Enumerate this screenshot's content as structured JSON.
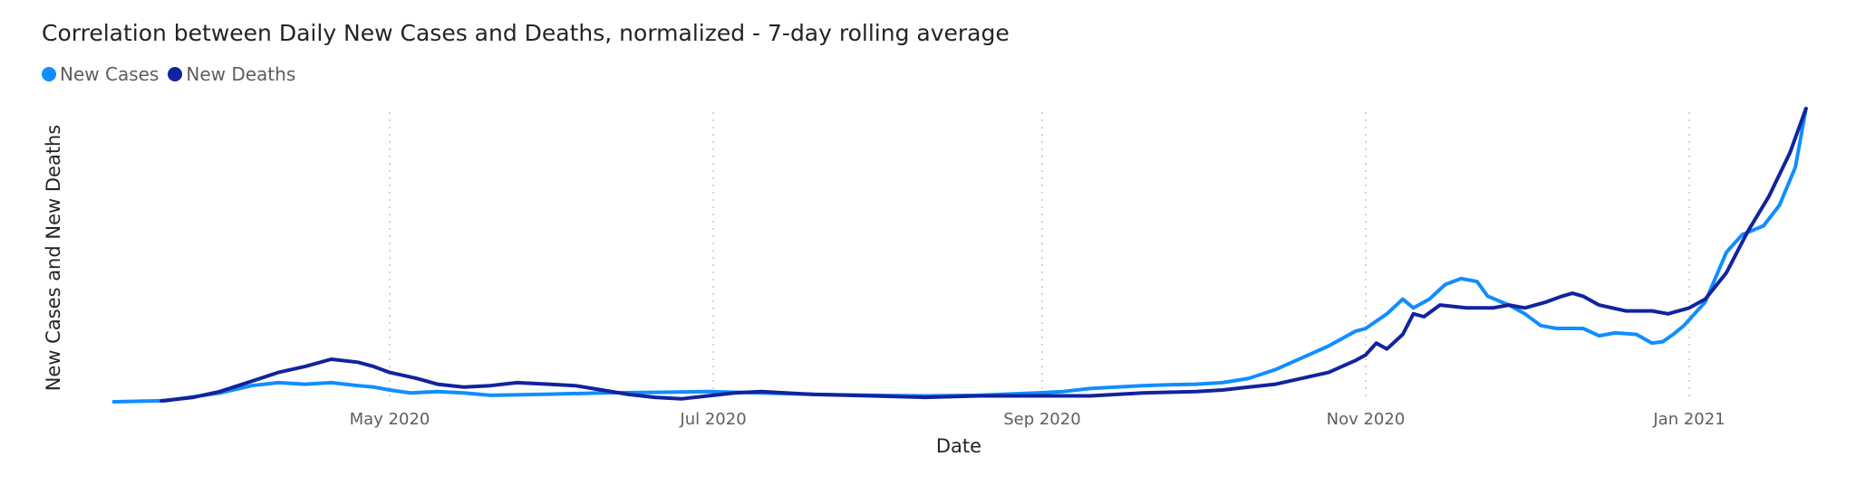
{
  "chart_data": {
    "type": "line",
    "title": "Correlation between Daily New Cases and Deaths, normalized - 7-day rolling average",
    "xlabel": "Date",
    "ylabel": "New Cases and New Deaths",
    "x_ticks": [
      {
        "date": "2020-05-01",
        "label": "May 2020"
      },
      {
        "date": "2020-07-01",
        "label": "Jul 2020"
      },
      {
        "date": "2020-09-01",
        "label": "Sep 2020"
      },
      {
        "date": "2020-11-01",
        "label": "Nov 2020"
      },
      {
        "date": "2021-01-01",
        "label": "Jan 2021"
      }
    ],
    "xlim": [
      "2020-03-10",
      "2021-01-23"
    ],
    "ylim": [
      0,
      1
    ],
    "grid": "vertical dotted",
    "legend_position": "top-left",
    "series": [
      {
        "name": "New Cases",
        "color": "#118dff",
        "points": [
          [
            "2020-03-10",
            0.0
          ],
          [
            "2020-03-20",
            0.004
          ],
          [
            "2020-03-30",
            0.03
          ],
          [
            "2020-04-05",
            0.055
          ],
          [
            "2020-04-10",
            0.065
          ],
          [
            "2020-04-15",
            0.06
          ],
          [
            "2020-04-20",
            0.065
          ],
          [
            "2020-04-25",
            0.055
          ],
          [
            "2020-04-28",
            0.05
          ],
          [
            "2020-05-01",
            0.04
          ],
          [
            "2020-05-05",
            0.03
          ],
          [
            "2020-05-10",
            0.035
          ],
          [
            "2020-05-15",
            0.03
          ],
          [
            "2020-05-20",
            0.022
          ],
          [
            "2020-05-31",
            0.026
          ],
          [
            "2020-06-10",
            0.03
          ],
          [
            "2020-06-20",
            0.032
          ],
          [
            "2020-06-30",
            0.035
          ],
          [
            "2020-07-10",
            0.03
          ],
          [
            "2020-07-20",
            0.025
          ],
          [
            "2020-07-31",
            0.022
          ],
          [
            "2020-08-10",
            0.02
          ],
          [
            "2020-08-20",
            0.022
          ],
          [
            "2020-08-31",
            0.03
          ],
          [
            "2020-09-05",
            0.035
          ],
          [
            "2020-09-10",
            0.045
          ],
          [
            "2020-09-15",
            0.05
          ],
          [
            "2020-09-20",
            0.055
          ],
          [
            "2020-09-25",
            0.058
          ],
          [
            "2020-09-30",
            0.06
          ],
          [
            "2020-10-05",
            0.065
          ],
          [
            "2020-10-10",
            0.08
          ],
          [
            "2020-10-15",
            0.11
          ],
          [
            "2020-10-20",
            0.15
          ],
          [
            "2020-10-25",
            0.19
          ],
          [
            "2020-10-30",
            0.24
          ],
          [
            "2020-11-01",
            0.25
          ],
          [
            "2020-11-05",
            0.3
          ],
          [
            "2020-11-08",
            0.35
          ],
          [
            "2020-11-10",
            0.32
          ],
          [
            "2020-11-13",
            0.35
          ],
          [
            "2020-11-16",
            0.4
          ],
          [
            "2020-11-19",
            0.42
          ],
          [
            "2020-11-22",
            0.41
          ],
          [
            "2020-11-24",
            0.36
          ],
          [
            "2020-11-28",
            0.33
          ],
          [
            "2020-12-01",
            0.3
          ],
          [
            "2020-12-04",
            0.26
          ],
          [
            "2020-12-07",
            0.25
          ],
          [
            "2020-12-12",
            0.25
          ],
          [
            "2020-12-15",
            0.225
          ],
          [
            "2020-12-18",
            0.235
          ],
          [
            "2020-12-22",
            0.23
          ],
          [
            "2020-12-25",
            0.2
          ],
          [
            "2020-12-27",
            0.205
          ],
          [
            "2020-12-29",
            0.23
          ],
          [
            "2020-12-31",
            0.26
          ],
          [
            "2021-01-04",
            0.34
          ],
          [
            "2021-01-08",
            0.51
          ],
          [
            "2021-01-11",
            0.57
          ],
          [
            "2021-01-15",
            0.6
          ],
          [
            "2021-01-18",
            0.67
          ],
          [
            "2021-01-21",
            0.8
          ],
          [
            "2021-01-23",
            1.0
          ]
        ]
      },
      {
        "name": "New Deaths",
        "color": "#12239e",
        "points": [
          [
            "2020-03-19",
            0.003
          ],
          [
            "2020-03-25",
            0.015
          ],
          [
            "2020-03-30",
            0.035
          ],
          [
            "2020-04-05",
            0.07
          ],
          [
            "2020-04-10",
            0.1
          ],
          [
            "2020-04-15",
            0.12
          ],
          [
            "2020-04-20",
            0.145
          ],
          [
            "2020-04-25",
            0.135
          ],
          [
            "2020-04-28",
            0.12
          ],
          [
            "2020-05-01",
            0.1
          ],
          [
            "2020-05-06",
            0.08
          ],
          [
            "2020-05-10",
            0.06
          ],
          [
            "2020-05-15",
            0.05
          ],
          [
            "2020-05-20",
            0.055
          ],
          [
            "2020-05-25",
            0.065
          ],
          [
            "2020-05-31",
            0.06
          ],
          [
            "2020-06-05",
            0.055
          ],
          [
            "2020-06-10",
            0.04
          ],
          [
            "2020-06-15",
            0.025
          ],
          [
            "2020-06-20",
            0.015
          ],
          [
            "2020-06-25",
            0.01
          ],
          [
            "2020-06-30",
            0.02
          ],
          [
            "2020-07-05",
            0.03
          ],
          [
            "2020-07-10",
            0.035
          ],
          [
            "2020-07-20",
            0.025
          ],
          [
            "2020-07-31",
            0.02
          ],
          [
            "2020-08-10",
            0.015
          ],
          [
            "2020-08-20",
            0.02
          ],
          [
            "2020-08-31",
            0.02
          ],
          [
            "2020-09-10",
            0.02
          ],
          [
            "2020-09-20",
            0.03
          ],
          [
            "2020-09-30",
            0.035
          ],
          [
            "2020-10-05",
            0.04
          ],
          [
            "2020-10-10",
            0.05
          ],
          [
            "2020-10-15",
            0.06
          ],
          [
            "2020-10-20",
            0.08
          ],
          [
            "2020-10-25",
            0.1
          ],
          [
            "2020-10-30",
            0.14
          ],
          [
            "2020-11-01",
            0.16
          ],
          [
            "2020-11-03",
            0.2
          ],
          [
            "2020-11-05",
            0.18
          ],
          [
            "2020-11-08",
            0.23
          ],
          [
            "2020-11-10",
            0.3
          ],
          [
            "2020-11-12",
            0.29
          ],
          [
            "2020-11-15",
            0.33
          ],
          [
            "2020-11-20",
            0.32
          ],
          [
            "2020-11-25",
            0.32
          ],
          [
            "2020-11-28",
            0.33
          ],
          [
            "2020-12-01",
            0.32
          ],
          [
            "2020-12-05",
            0.34
          ],
          [
            "2020-12-08",
            0.36
          ],
          [
            "2020-12-10",
            0.37
          ],
          [
            "2020-12-12",
            0.36
          ],
          [
            "2020-12-15",
            0.33
          ],
          [
            "2020-12-20",
            0.31
          ],
          [
            "2020-12-25",
            0.31
          ],
          [
            "2020-12-28",
            0.3
          ],
          [
            "2021-01-01",
            0.32
          ],
          [
            "2021-01-04",
            0.35
          ],
          [
            "2021-01-08",
            0.44
          ],
          [
            "2021-01-12",
            0.58
          ],
          [
            "2021-01-16",
            0.7
          ],
          [
            "2021-01-20",
            0.85
          ],
          [
            "2021-01-23",
            1.0
          ]
        ]
      }
    ]
  }
}
